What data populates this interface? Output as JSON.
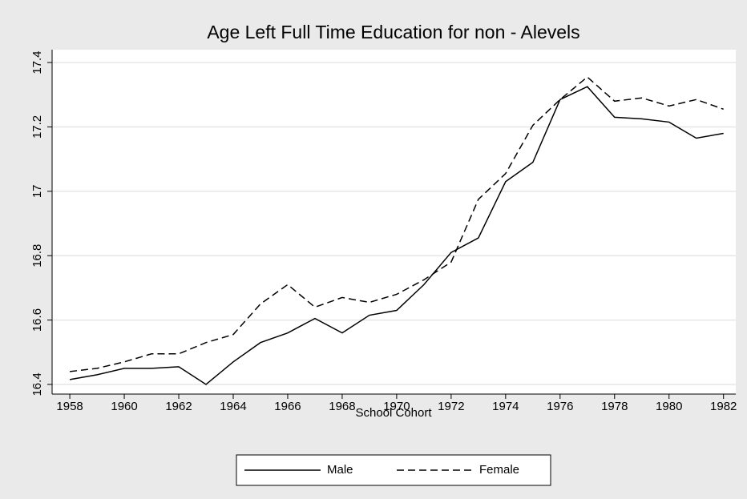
{
  "chart_data": {
    "type": "line",
    "title": "Age Left Full Time Education for non - Alevels",
    "x_label": "School Cohort",
    "x": [
      1958,
      1959,
      1960,
      1961,
      1962,
      1963,
      1964,
      1965,
      1966,
      1967,
      1968,
      1969,
      1970,
      1971,
      1972,
      1973,
      1974,
      1975,
      1976,
      1977,
      1978,
      1979,
      1980,
      1981,
      1982
    ],
    "series": [
      {
        "name": "Male",
        "color": "#000000",
        "dash": "solid",
        "values": [
          16.415,
          16.43,
          16.45,
          16.45,
          16.455,
          16.4,
          16.47,
          16.53,
          16.56,
          16.605,
          16.56,
          16.615,
          16.63,
          16.71,
          16.81,
          16.855,
          17.03,
          17.09,
          17.285,
          17.325,
          17.23,
          17.225,
          17.215,
          17.165,
          17.18
        ]
      },
      {
        "name": "Female",
        "color": "#000000",
        "dash": "dashed",
        "values": [
          16.44,
          16.45,
          16.47,
          16.495,
          16.495,
          16.53,
          16.555,
          16.65,
          16.71,
          16.64,
          16.67,
          16.655,
          16.68,
          16.725,
          16.78,
          16.975,
          17.055,
          17.205,
          17.285,
          17.355,
          17.28,
          17.29,
          17.265,
          17.285,
          17.255
        ]
      }
    ],
    "xlim": [
      1957.35,
      1982.45
    ],
    "xticks": [
      1958,
      1960,
      1962,
      1964,
      1966,
      1968,
      1970,
      1972,
      1974,
      1976,
      1978,
      1980,
      1982
    ],
    "ylim": [
      16.37,
      17.44
    ],
    "yticks": [
      16.4,
      16.6,
      16.8,
      17,
      17.2,
      17.4
    ],
    "grid": true,
    "legend": "bottom"
  }
}
